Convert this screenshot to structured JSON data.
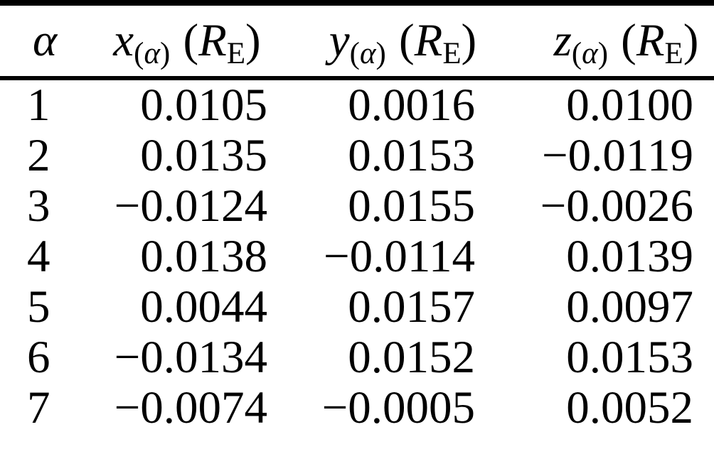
{
  "page": {
    "background": "#ffffff",
    "text_color": "#000000",
    "rule_color": "#000000"
  },
  "table": {
    "header": {
      "col1": {
        "symbol": "α"
      },
      "col2": {
        "var": "x",
        "sub_open": "(",
        "sub_symbol": "α",
        "sub_close": ")",
        "unit_open": "(",
        "unit_symbol": "R",
        "unit_sub": "E",
        "unit_close": ")"
      },
      "col3": {
        "var": "y",
        "sub_open": "(",
        "sub_symbol": "α",
        "sub_close": ")",
        "unit_open": "(",
        "unit_symbol": "R",
        "unit_sub": "E",
        "unit_close": ")"
      },
      "col4": {
        "var": "z",
        "sub_open": "(",
        "sub_symbol": "α",
        "sub_close": ")",
        "unit_open": "(",
        "unit_symbol": "R",
        "unit_sub": "E",
        "unit_close": ")"
      }
    },
    "rows": [
      {
        "alpha": "1",
        "x": "0.0105",
        "y": "0.0016",
        "z": "0.0100"
      },
      {
        "alpha": "2",
        "x": "0.0135",
        "y": "0.0153",
        "z": "−0.0119"
      },
      {
        "alpha": "3",
        "x": "−0.0124",
        "y": "0.0155",
        "z": "−0.0026"
      },
      {
        "alpha": "4",
        "x": "0.0138",
        "y": "−0.0114",
        "z": "0.0139"
      },
      {
        "alpha": "5",
        "x": "0.0044",
        "y": "0.0157",
        "z": "0.0097"
      },
      {
        "alpha": "6",
        "x": "−0.0134",
        "y": "0.0152",
        "z": "0.0153"
      },
      {
        "alpha": "7",
        "x": "−0.0074",
        "y": "−0.0005",
        "z": "0.0052"
      }
    ]
  }
}
